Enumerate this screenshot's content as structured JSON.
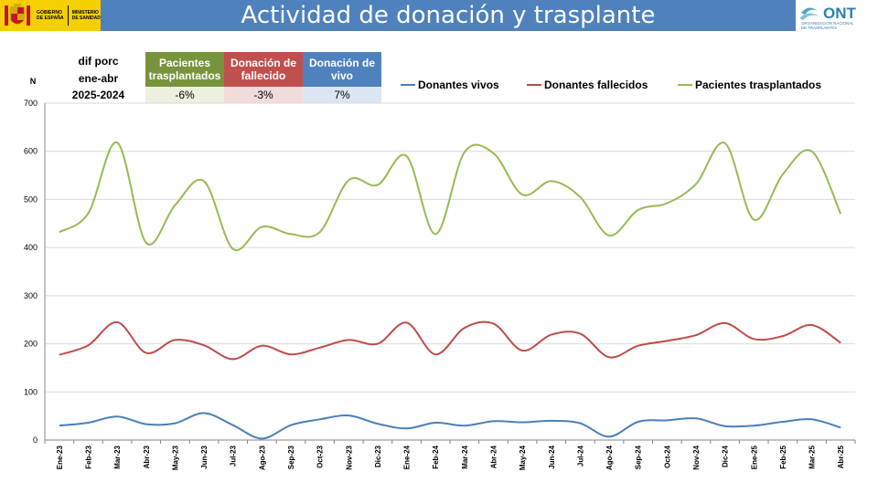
{
  "header": {
    "title": "Actividad de donación y trasplante",
    "gov_logo_line1": "GOBIERNO",
    "gov_logo_line2": "DE ESPAÑA",
    "gov_logo_ministry1": "MINISTERIO",
    "gov_logo_ministry2": "DE SANIDAD",
    "ont_logo_text": "ONT",
    "ont_logo_sub1": "ORGANIZACIÓN NACIONAL",
    "ont_logo_sub2": "DE TRASPLANTES"
  },
  "summary_table": {
    "row_label_1": "dif porc",
    "row_label_2": "ene-abr",
    "row_label_3": "2025-2024",
    "columns": [
      {
        "header_line1": "Pacientes",
        "header_line2": "trasplantados",
        "value": "-6%",
        "color": "#77933c"
      },
      {
        "header_line1": "Donación de",
        "header_line2": "fallecido",
        "value": "-3%",
        "color": "#c0504d"
      },
      {
        "header_line1": "Donación de",
        "header_line2": "vivo",
        "value": "7%",
        "color": "#4f81bd"
      }
    ]
  },
  "chart_data": {
    "type": "line",
    "ylabel": "N",
    "ylim": [
      0,
      700
    ],
    "yticks": [
      0,
      100,
      200,
      300,
      400,
      500,
      600,
      700
    ],
    "grid": true,
    "legend_position": "top",
    "categories": [
      "Ene-23",
      "Feb-23",
      "Mar-23",
      "Abr-23",
      "May-23",
      "Jun-23",
      "Jul-23",
      "Ago-23",
      "Sep-23",
      "Oct-23",
      "Nov-23",
      "Dic-23",
      "Ene-24",
      "Feb-24",
      "Mar-24",
      "Abr-24",
      "May-24",
      "Jun-24",
      "Jul-24",
      "Ago-24",
      "Sep-24",
      "Oct-24",
      "Nov-24",
      "Dic-24",
      "Ene-25",
      "Feb-25",
      "Mar-25",
      "Abr-25"
    ],
    "series": [
      {
        "name": "Donantes vivos",
        "color": "#4a7ebb",
        "values": [
          30,
          36,
          49,
          33,
          35,
          56,
          31,
          3,
          31,
          43,
          51,
          34,
          24,
          36,
          30,
          39,
          37,
          40,
          35,
          7,
          38,
          41,
          45,
          29,
          30,
          38,
          43,
          26
        ]
      },
      {
        "name": "Donantes fallecidos",
        "color": "#be4b48",
        "values": [
          177,
          197,
          245,
          181,
          208,
          197,
          168,
          196,
          178,
          192,
          208,
          200,
          244,
          178,
          233,
          242,
          186,
          219,
          221,
          172,
          196,
          206,
          218,
          243,
          210,
          216,
          239,
          202
        ]
      },
      {
        "name": "Pacientes trasplantados",
        "color": "#98b954",
        "values": [
          432,
          471,
          618,
          410,
          488,
          538,
          397,
          443,
          428,
          432,
          540,
          530,
          590,
          428,
          598,
          596,
          510,
          538,
          505,
          425,
          478,
          492,
          532,
          617,
          458,
          552,
          600,
          470
        ]
      }
    ]
  }
}
